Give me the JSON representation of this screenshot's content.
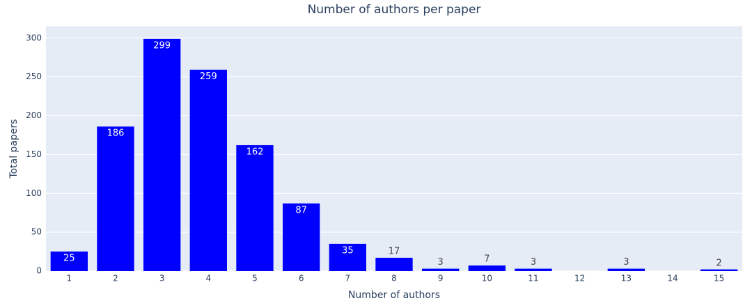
{
  "chart_data": {
    "type": "bar",
    "title": "Number of authors per paper",
    "x_label": "Number of authors",
    "y_label": "Total papers",
    "x": [
      1,
      2,
      3,
      4,
      5,
      6,
      7,
      8,
      9,
      10,
      11,
      13,
      15
    ],
    "values": [
      25,
      186,
      299,
      259,
      162,
      87,
      35,
      17,
      3,
      7,
      3,
      3,
      2
    ],
    "color": "#0000ff",
    "xlim": [
      0.5,
      15.5
    ],
    "xticks": [
      1,
      2,
      3,
      4,
      5,
      6,
      7,
      8,
      9,
      10,
      11,
      12,
      13,
      14,
      15
    ],
    "ylim": [
      0,
      315
    ],
    "yticks": [
      0,
      50,
      100,
      150,
      200,
      250,
      300
    ],
    "grid": true
  }
}
